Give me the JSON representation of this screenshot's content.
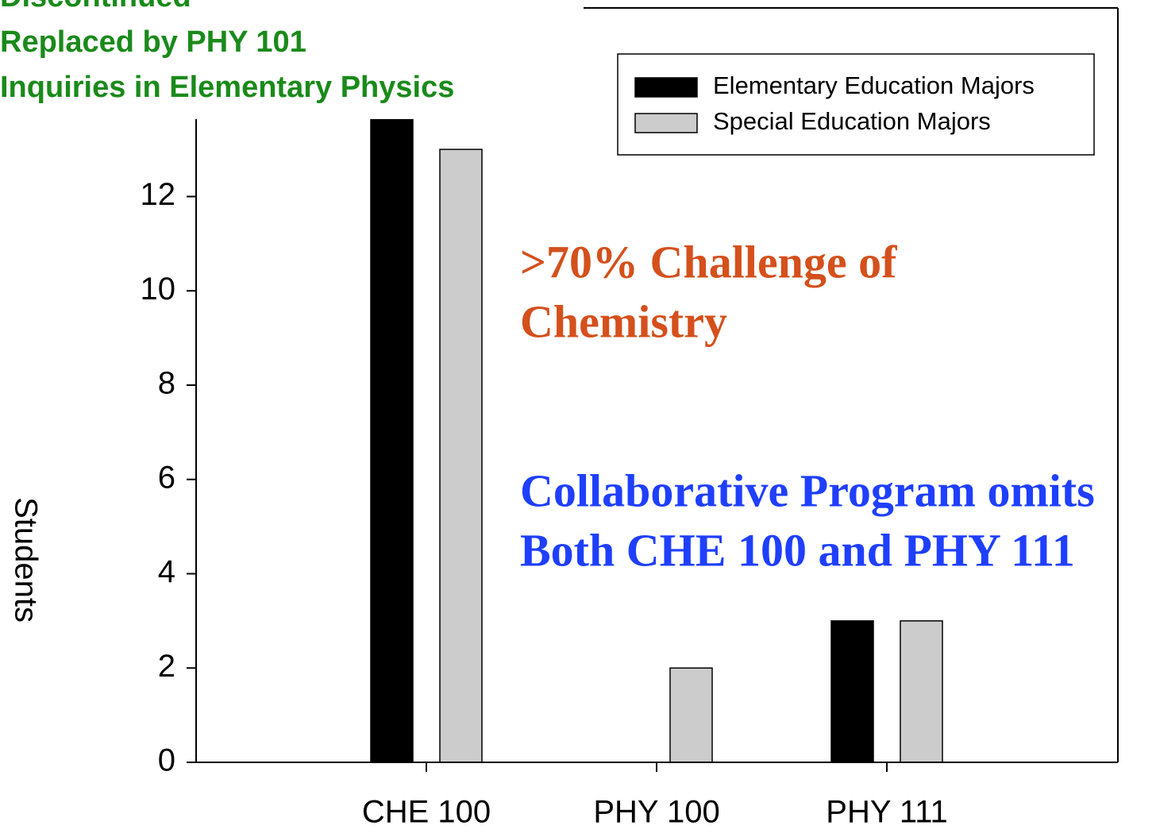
{
  "chart_data": {
    "type": "bar",
    "y_label": "Students",
    "categories": [
      "CHE 100",
      "PHY 100",
      "PHY 111"
    ],
    "series": [
      {
        "name": "Elementary Education Majors",
        "color": "#000000",
        "values": [
          14,
          0,
          3
        ]
      },
      {
        "name": "Special Education Majors",
        "color": "#cccccc",
        "values": [
          13,
          2,
          3
        ]
      }
    ],
    "ylim": [
      0,
      16
    ],
    "yticks": [
      0,
      2,
      4,
      6,
      8,
      10,
      12
    ],
    "legend": "upper right",
    "header_lines": [
      "Discontinued",
      "Replaced by PHY 101",
      "Inquiries in Elementary Physics"
    ],
    "header_color": "#1a8a1a",
    "annotations": [
      {
        "lines": [
          ">70% Challenge of",
          "Chemistry"
        ],
        "color": "#d4501c"
      },
      {
        "lines": [
          "Collaborative Program omits",
          "Both CHE 100 and PHY 111"
        ],
        "color": "#1f3fff"
      }
    ]
  }
}
